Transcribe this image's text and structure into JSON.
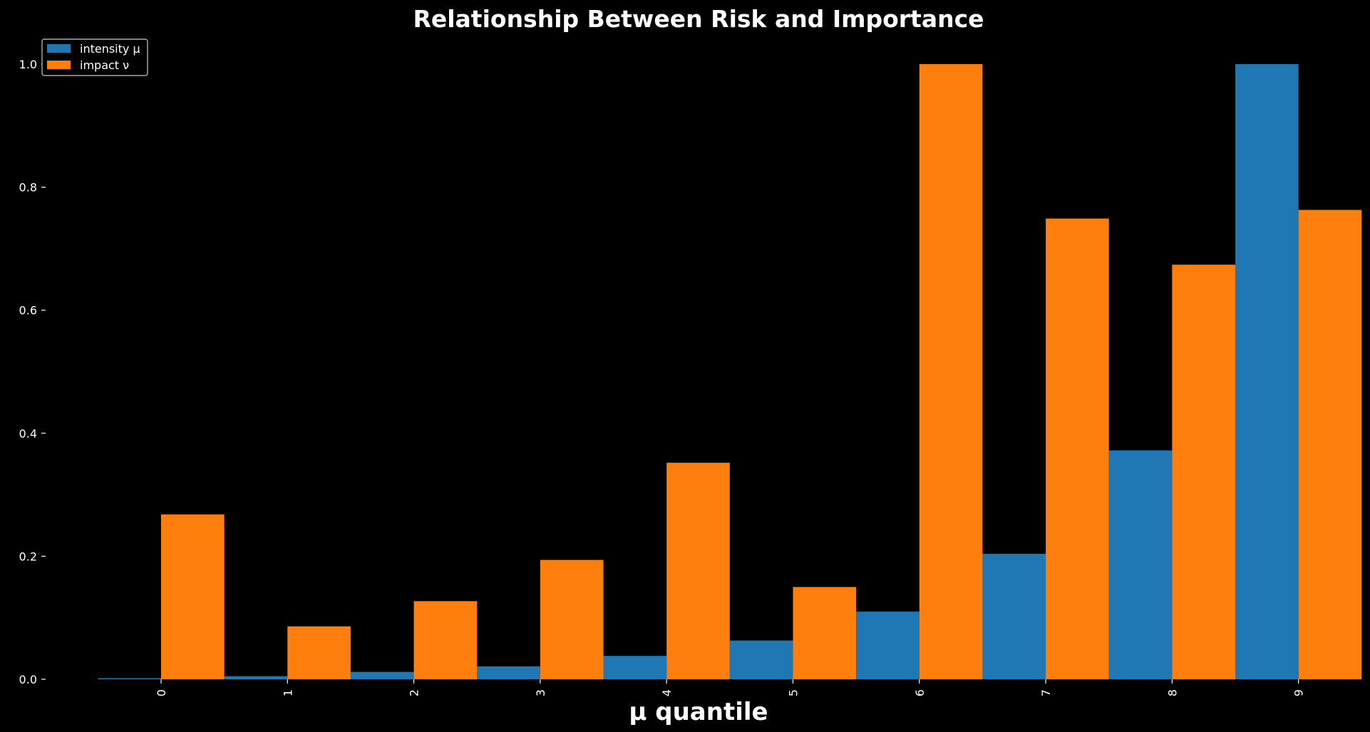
{
  "chart_data": {
    "type": "bar",
    "title": "Relationship Between Risk and Importance",
    "xlabel": "μ quantile",
    "ylabel": "",
    "categories": [
      "0",
      "1",
      "2",
      "3",
      "4",
      "5",
      "6",
      "7",
      "8",
      "9"
    ],
    "series": [
      {
        "name": "intensity μ",
        "color": "#1f77b4",
        "values": [
          0.0,
          0.005,
          0.012,
          0.021,
          0.038,
          0.063,
          0.11,
          0.204,
          0.372,
          1.0
        ]
      },
      {
        "name": "impact ν",
        "color": "#ff7f0e",
        "values": [
          0.268,
          0.086,
          0.127,
          0.194,
          0.352,
          0.15,
          1.0,
          0.749,
          0.674,
          0.763
        ]
      }
    ],
    "ylim": [
      0.0,
      1.05
    ],
    "yticks": [
      "0.0",
      "0.2",
      "0.4",
      "0.6",
      "0.8",
      "1.0"
    ],
    "ytick_values": [
      0.0,
      0.2,
      0.4,
      0.6,
      0.8,
      1.0
    ],
    "grid": false,
    "legend_position": "top-left",
    "background": "#000000",
    "text_color": "#ffffff"
  }
}
